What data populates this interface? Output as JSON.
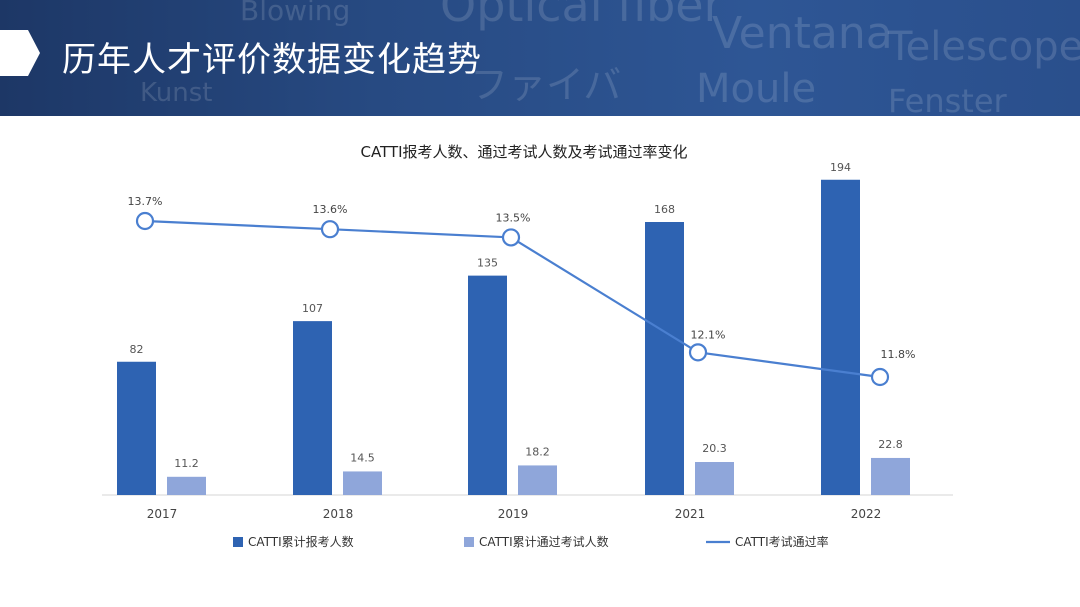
{
  "header": {
    "title": "历年人才评价数据变化趋势",
    "background_words": [
      "Optical fiber",
      "Ventana",
      "Telescope",
      "Moule",
      "Fenster",
      "Kunst",
      "Blowing",
      "ファイバ"
    ]
  },
  "colors": {
    "banner": "#27497f",
    "bar_total": "#2e63b2",
    "bar_passed": "#8fa6da",
    "line_rate": "#4a7fd0"
  },
  "chart_data": {
    "type": "bar",
    "title": "CATTI报考人数、通过考试人数及考试通过率变化",
    "categories": [
      "2017",
      "2018",
      "2019",
      "2021",
      "2022"
    ],
    "series": [
      {
        "name": "CATTI累计报考人数",
        "type": "bar",
        "values": [
          82,
          107,
          135,
          168,
          194
        ],
        "labels": [
          "82",
          "107",
          "135",
          "168",
          "194"
        ]
      },
      {
        "name": "CATTI累计通过考试人数",
        "type": "bar",
        "values": [
          11.2,
          14.5,
          18.2,
          20.3,
          22.8
        ],
        "labels": [
          "11.2",
          "14.5",
          "18.2",
          "20.3",
          "22.8"
        ]
      },
      {
        "name": "CATTI考试通过率",
        "type": "line",
        "values": [
          13.7,
          13.6,
          13.5,
          12.1,
          11.8
        ],
        "labels": [
          "13.7%",
          "13.6%",
          "13.5%",
          "12.1%",
          "11.8%"
        ]
      }
    ],
    "ylim_bars": [
      0,
      200
    ],
    "legend_position": "bottom",
    "grid": false
  }
}
